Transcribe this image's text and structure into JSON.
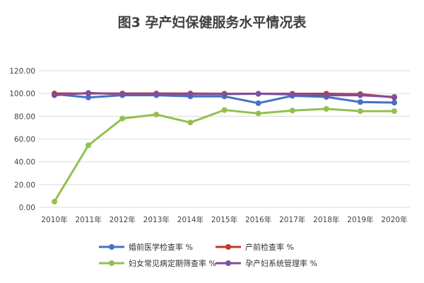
{
  "chart_data": {
    "type": "line",
    "title": "图3  孕产妇保健服务水平情况表",
    "xlabel": "",
    "ylabel": "",
    "categories": [
      "2010年",
      "2011年",
      "2012年",
      "2013年",
      "2014年",
      "2015年",
      "2016年",
      "2017年",
      "2018年",
      "2019年",
      "2020年"
    ],
    "ylim": [
      0,
      120
    ],
    "yticks": [
      "0.00",
      "20.00",
      "40.00",
      "60.00",
      "80.00",
      "100.00",
      "120.00"
    ],
    "grid": true,
    "legend_position": "bottom",
    "series": [
      {
        "name": "婚前医学检查率 %",
        "color": "#4472C4",
        "values": [
          99.5,
          96.5,
          98.5,
          98.5,
          97.5,
          97.5,
          91.5,
          98.0,
          97.0,
          92.5,
          92.0
        ]
      },
      {
        "name": "产前检查率 %",
        "color": "#C0392B",
        "values": [
          100.0,
          100.0,
          100.0,
          100.0,
          100.0,
          99.8,
          99.8,
          99.8,
          99.8,
          99.5,
          96.5
        ]
      },
      {
        "name": "妇女常见病定期筛查率 %",
        "color": "#92C050",
        "values": [
          5.0,
          54.5,
          78.0,
          81.5,
          74.5,
          85.5,
          82.5,
          85.0,
          86.5,
          84.5,
          84.5
        ]
      },
      {
        "name": "孕产妇系统管理率 %",
        "color": "#7F4F9F",
        "values": [
          98.5,
          100.5,
          99.5,
          99.5,
          99.5,
          99.5,
          99.8,
          99.2,
          98.5,
          98.5,
          97.0
        ]
      }
    ]
  }
}
